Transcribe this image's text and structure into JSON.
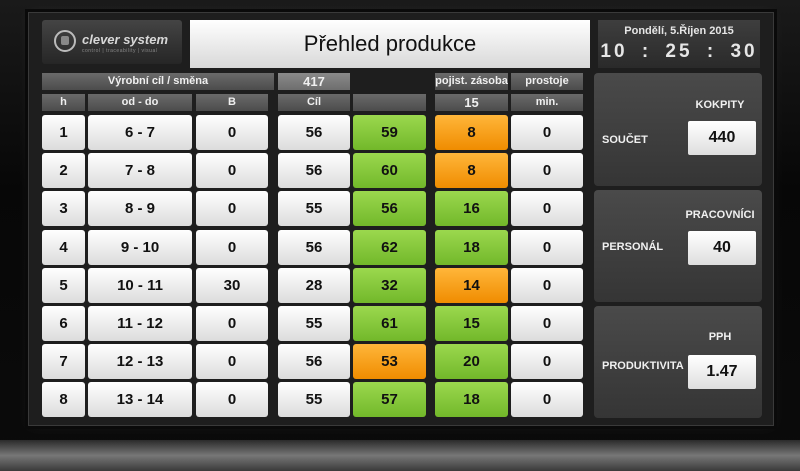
{
  "brand": {
    "name": "clever system",
    "tagline": "control | traceability | visual"
  },
  "title": "Přehled produkce",
  "datetime": {
    "date": "Pondělí, 5.Říjen 2015",
    "time": "10 : 25 : 30"
  },
  "header": {
    "shift_target_label": "Výrobní cíl / směna",
    "shift_target_value": "417",
    "reserve_label": "pojist. zásoba",
    "reserve_value": "15",
    "downtime_label": "prostoje",
    "columns": {
      "h": "h",
      "from_to": "od - do",
      "b": "B",
      "goal": "Cíl",
      "actual": "",
      "min": "min."
    }
  },
  "colors": {
    "green": "#86c83c",
    "orange": "#f5a018",
    "white": "#f4f4f4"
  },
  "rows": [
    {
      "h": "1",
      "range": "6 - 7",
      "b": "0",
      "goal": "56",
      "actual": "59",
      "actual_status": "green",
      "reserve": "8",
      "reserve_status": "orange",
      "min": "0"
    },
    {
      "h": "2",
      "range": "7 - 8",
      "b": "0",
      "goal": "56",
      "actual": "60",
      "actual_status": "green",
      "reserve": "8",
      "reserve_status": "orange",
      "min": "0"
    },
    {
      "h": "3",
      "range": "8 - 9",
      "b": "0",
      "goal": "55",
      "actual": "56",
      "actual_status": "green",
      "reserve": "16",
      "reserve_status": "green",
      "min": "0"
    },
    {
      "h": "4",
      "range": "9 - 10",
      "b": "0",
      "goal": "56",
      "actual": "62",
      "actual_status": "green",
      "reserve": "18",
      "reserve_status": "green",
      "min": "0"
    },
    {
      "h": "5",
      "range": "10 - 11",
      "b": "30",
      "goal": "28",
      "actual": "32",
      "actual_status": "green",
      "reserve": "14",
      "reserve_status": "orange",
      "min": "0"
    },
    {
      "h": "6",
      "range": "11 - 12",
      "b": "0",
      "goal": "55",
      "actual": "61",
      "actual_status": "green",
      "reserve": "15",
      "reserve_status": "green",
      "min": "0"
    },
    {
      "h": "7",
      "range": "12 - 13",
      "b": "0",
      "goal": "56",
      "actual": "53",
      "actual_status": "orange",
      "reserve": "20",
      "reserve_status": "green",
      "min": "0"
    },
    {
      "h": "8",
      "range": "13 - 14",
      "b": "0",
      "goal": "55",
      "actual": "57",
      "actual_status": "green",
      "reserve": "18",
      "reserve_status": "green",
      "min": "0"
    }
  ],
  "panels": [
    {
      "label": "SOUČET",
      "head": "KOKPITY",
      "value": "440"
    },
    {
      "label": "PERSONÁL",
      "head": "PRACOVNÍCI",
      "value": "40"
    },
    {
      "label": "PRODUKTIVITA",
      "head": "PPH",
      "value": "1.47"
    }
  ]
}
